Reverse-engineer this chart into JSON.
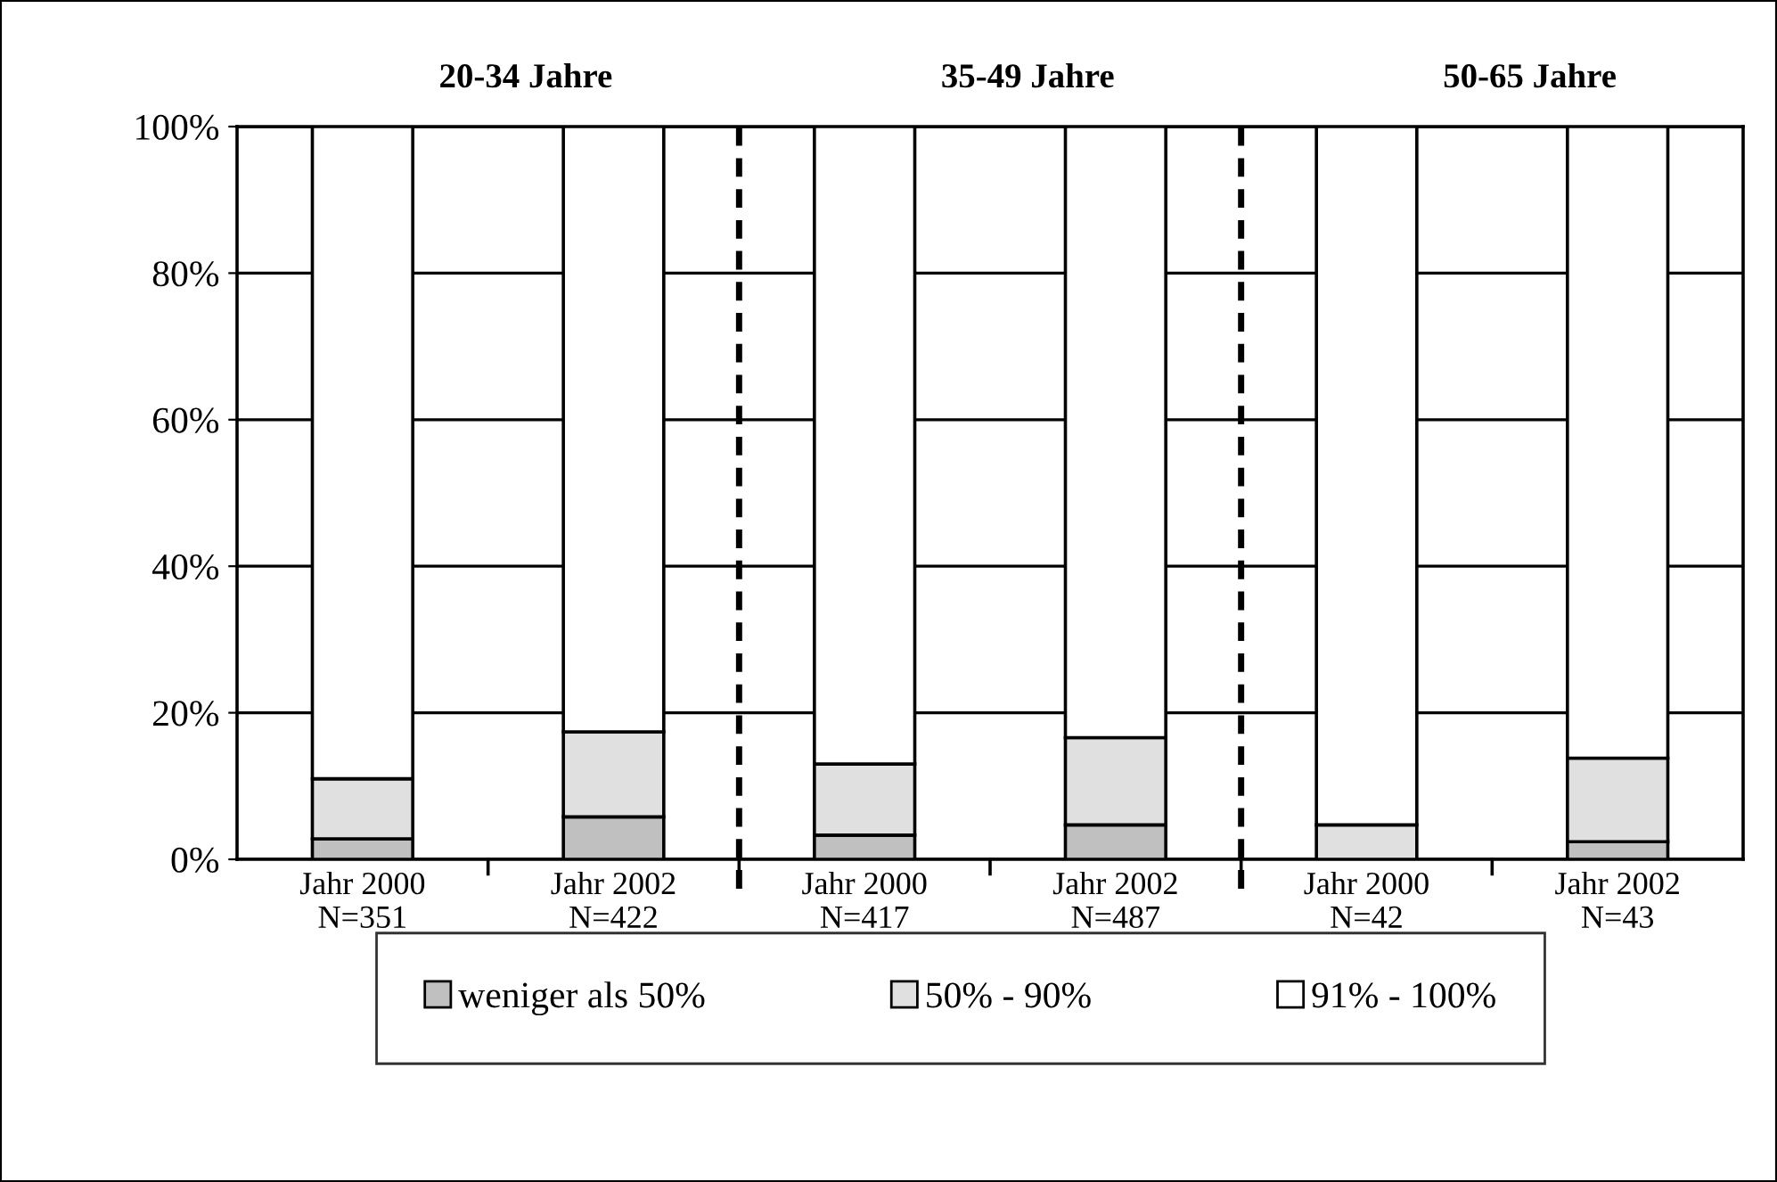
{
  "chart_data": {
    "type": "bar",
    "stacked": true,
    "categories": [
      "Jahr 2000\nN=351",
      "Jahr 2002\nN=422",
      "Jahr 2000\nN=417",
      "Jahr 2002\nN=487",
      "Jahr 2000\nN=42",
      "Jahr 2002\nN=43"
    ],
    "series": [
      {
        "name": "weniger als 50%",
        "color": "#c0c0c0",
        "values": [
          2.8,
          5.8,
          3.3,
          4.7,
          0,
          2.4
        ]
      },
      {
        "name": "50% - 90%",
        "color": "#e0e0e0",
        "values": [
          8.2,
          11.6,
          9.7,
          11.9,
          4.7,
          11.4
        ]
      },
      {
        "name": "91% - 100%",
        "color": "#ffffff",
        "values": [
          89.0,
          82.6,
          87.0,
          83.4,
          95.3,
          86.2
        ]
      }
    ],
    "ylim": [
      0,
      100
    ],
    "yticks": [
      {
        "value": 0,
        "label": "0%"
      },
      {
        "value": 20,
        "label": "20%"
      },
      {
        "value": 40,
        "label": "40%"
      },
      {
        "value": 60,
        "label": "60%"
      },
      {
        "value": 80,
        "label": "80%"
      },
      {
        "value": 100,
        "label": "100%"
      }
    ],
    "grid": "y",
    "legend": "bottom",
    "annotations": [
      "20-34 Jahre",
      "35-49 Jahre",
      "50-65 Jahre"
    ]
  }
}
